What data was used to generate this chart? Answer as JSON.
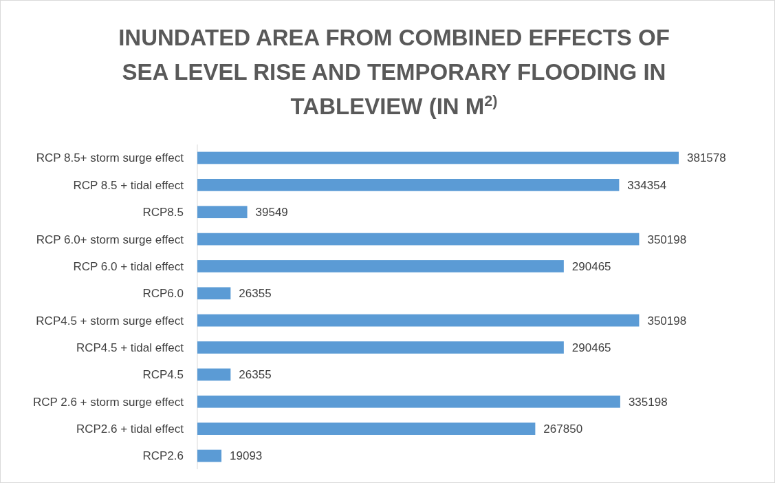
{
  "chart_data": {
    "type": "bar",
    "orientation": "horizontal",
    "title": "INUNDATED AREA FROM COMBINED EFFECTS OF SEA LEVEL RISE AND TEMPORARY FLOODING IN TABLEVIEW (IN M$^{2)}$",
    "categories": [
      "RCP 8.5+ storm surge effect",
      "RCP 8.5 + tidal effect",
      "RCP8.5",
      "RCP 6.0+ storm surge effect",
      "RCP 6.0 + tidal effect",
      "RCP6.0",
      "RCP4.5 + storm surge effect",
      "RCP4.5 + tidal effect",
      "RCP4.5",
      "RCP 2.6 + storm surge effect",
      "RCP2.6 + tidal effect",
      "RCP2.6"
    ],
    "values": [
      381578,
      334354,
      39549,
      350198,
      290465,
      26355,
      350198,
      290465,
      26355,
      335198,
      267850,
      19093
    ],
    "color": "#5b9bd5",
    "data_labels": true
  }
}
